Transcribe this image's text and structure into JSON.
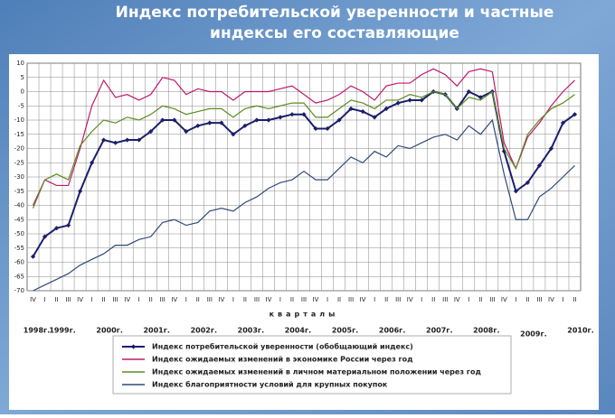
{
  "chart_data": {
    "type": "line",
    "title": [
      "Индекс потребительской уверенности и частные",
      "индексы его составляющие"
    ],
    "x_label": "кварталы",
    "categories": [
      "IV",
      "I",
      "II",
      "III",
      "IV",
      "I",
      "II",
      "III",
      "IV",
      "I",
      "II",
      "III",
      "IV",
      "I",
      "II",
      "III",
      "IV",
      "I",
      "II",
      "III",
      "IV",
      "I",
      "II",
      "III",
      "IV",
      "I",
      "II",
      "III",
      "IV",
      "I",
      "II",
      "III",
      "IV",
      "I",
      "II",
      "III",
      "IV",
      "I",
      "II",
      "III",
      "IV",
      "I",
      "II",
      "III",
      "IV",
      "I",
      "II"
    ],
    "year_labels": [
      "1998г.",
      "1999г.",
      "2000г.",
      "2001г.",
      "2002г.",
      "2003г.",
      "2004г.",
      "2005г.",
      "2006г.",
      "2007г.",
      "2008г.",
      "2009г.",
      "2010г."
    ],
    "ylim": [
      -70,
      10
    ],
    "yticks": [
      10,
      5,
      0,
      -5,
      -10,
      -15,
      -20,
      -25,
      -30,
      -35,
      -40,
      -45,
      -50,
      -55,
      -60,
      -65,
      -70
    ],
    "grid": true,
    "series": [
      {
        "name": "Индекс потребительской уверенности (обобщающий индекс)",
        "color": "#1b1f6b",
        "marker": "diamond",
        "values": [
          -58,
          -51,
          -48,
          -47,
          -35,
          -25,
          -17,
          -18,
          -17,
          -17,
          -14,
          -10,
          -10,
          -14,
          -12,
          -11,
          -11,
          -15,
          -12,
          -10,
          -10,
          -9,
          -8,
          -8,
          -13,
          -13,
          -10,
          -6,
          -7,
          -9,
          -6,
          -4,
          -3,
          -3,
          0,
          -1,
          -6,
          0,
          -2,
          0,
          -21,
          -35,
          -32,
          -26,
          -20,
          -11,
          -8
        ]
      },
      {
        "name": "Индекс ожидаемых изменений в экономике России через год",
        "color": "#c0186a",
        "values": [
          -40,
          -31,
          -33,
          -33,
          -20,
          -5,
          4,
          -2,
          -1,
          -3,
          -1,
          5,
          4,
          -1,
          1,
          0,
          0,
          -3,
          0,
          0,
          0,
          1,
          2,
          -1,
          -4,
          -3,
          -1,
          2,
          0,
          -3,
          2,
          3,
          3,
          6,
          8,
          6,
          2,
          7,
          8,
          7,
          -18,
          -27,
          -16,
          -11,
          -5,
          0,
          4
        ]
      },
      {
        "name": "Индекс ожидаемых изменений в личном материальном положении через год",
        "color": "#5a8c1e",
        "values": [
          -41,
          -31,
          -29,
          -31,
          -19,
          -14,
          -10,
          -11,
          -9,
          -10,
          -8,
          -5,
          -6,
          -8,
          -7,
          -6,
          -6,
          -9,
          -6,
          -5,
          -6,
          -5,
          -4,
          -4,
          -9,
          -9,
          -6,
          -3,
          -4,
          -6,
          -3,
          -3,
          -1,
          -2,
          0,
          -1,
          -6,
          -2,
          -3,
          0,
          -20,
          -27,
          -15,
          -10,
          -6,
          -4,
          -1
        ]
      },
      {
        "name": "Индекс благоприятности условий для крупных покупок",
        "color": "#2f4a7c",
        "values": [
          -70,
          -68,
          -66,
          -64,
          -61,
          -59,
          -57,
          -54,
          -54,
          -52,
          -51,
          -46,
          -45,
          -47,
          -46,
          -42,
          -41,
          -42,
          -39,
          -37,
          -34,
          -32,
          -31,
          -28,
          -31,
          -31,
          -27,
          -23,
          -25,
          -21,
          -23,
          -19,
          -20,
          -18,
          -16,
          -15,
          -17,
          -12,
          -15,
          -10,
          -29,
          -45,
          -45,
          -37,
          -34,
          -30,
          -26
        ]
      }
    ]
  }
}
